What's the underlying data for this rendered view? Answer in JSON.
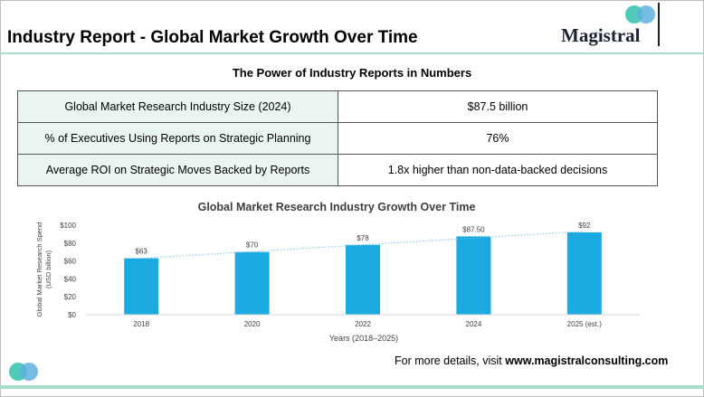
{
  "header": {
    "title": "Industry Report - Global Market Growth Over Time",
    "logo_text": "Magistral"
  },
  "section": {
    "heading": "The Power of Industry Reports in Numbers"
  },
  "stats": [
    {
      "label": "Global Market Research Industry Size (2024)",
      "value": "$87.5 billion"
    },
    {
      "label": "% of Executives Using Reports on Strategic Planning",
      "value": "76%"
    },
    {
      "label": "Average ROI on Strategic Moves Backed by Reports",
      "value": "1.8x higher than non-data-backed decisions"
    }
  ],
  "chart_data": {
    "type": "bar",
    "title": "Global Market Research Industry Growth Over Time",
    "xlabel": "Years (2018–2025)",
    "ylabel": "Global Market Research Spend (USD billion)",
    "ylabel_lines": [
      "Global Market Research Spend",
      "(USD billion)"
    ],
    "categories": [
      "2018",
      "2020",
      "2022",
      "2024",
      "2025 (est.)"
    ],
    "values": [
      63,
      70,
      78,
      87.5,
      92
    ],
    "data_labels": [
      "$63",
      "$70",
      "$78",
      "$87.50",
      "$92"
    ],
    "ylim": [
      0,
      100
    ],
    "yticks": [
      0,
      20,
      40,
      60,
      80,
      100
    ],
    "ytick_labels": [
      "$0",
      "$20",
      "$40",
      "$60",
      "$80",
      "$100"
    ],
    "trendline": true,
    "bar_color": "#1aa9e1",
    "trend_color": "#7cc3e8",
    "grid": false
  },
  "footer": {
    "text_prefix": "For more details, visit ",
    "link_text": "www.magistralconsulting.com"
  },
  "colors": {
    "accent_rule": "#a9dccf",
    "teal_circle": "#3cc4b0",
    "blue_circle": "#5fb0de",
    "table_label_bg": "#eaf5f1"
  }
}
